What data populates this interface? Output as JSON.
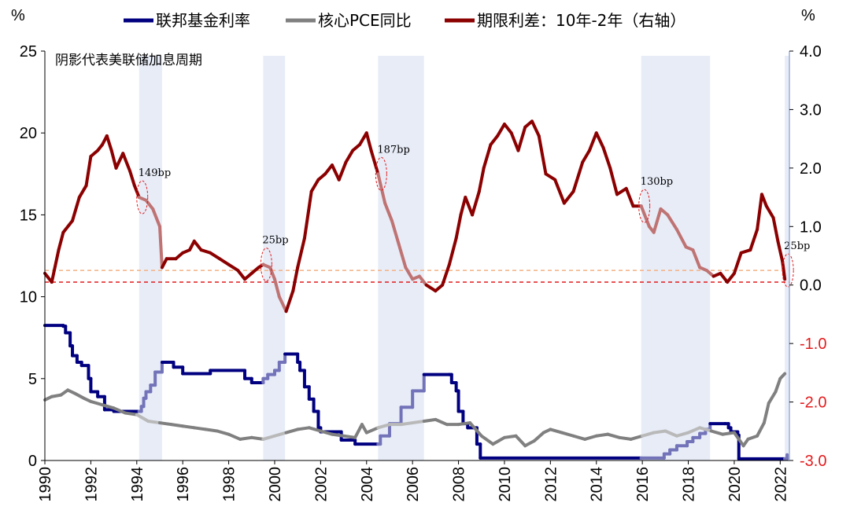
{
  "chart_data": {
    "type": "line",
    "legend": [
      "联邦基金利率",
      "核心PCE同比",
      "期限利差：10年-2年（右轴）"
    ],
    "note": "阴影代表美联储加息周期",
    "left_unit": "%",
    "right_unit": "%",
    "left_axis": {
      "range": [
        0,
        25
      ],
      "ticks": [
        "0",
        "5",
        "10",
        "15",
        "20",
        "25"
      ]
    },
    "right_axis": {
      "range": [
        -3.0,
        4.0
      ],
      "ticks": [
        "-3.0",
        "-2.0",
        "-1.0",
        "0.0",
        "1.0",
        "2.0",
        "3.0",
        "4.0"
      ]
    },
    "x_axis": {
      "range": [
        1990,
        2022.4
      ],
      "ticks": [
        "1990",
        "1992",
        "1994",
        "1996",
        "1998",
        "2000",
        "2002",
        "2004",
        "2006",
        "2008",
        "2010",
        "2012",
        "2014",
        "2016",
        "2018",
        "2020",
        "2022"
      ]
    },
    "shaded_periods": [
      [
        1994.1,
        1995.1
      ],
      [
        1999.5,
        2000.45
      ],
      [
        2004.5,
        2006.5
      ],
      [
        2015.95,
        2018.95
      ],
      [
        2022.2,
        2022.4
      ]
    ],
    "annotations": [
      {
        "label": "149bp",
        "x": 1994.1,
        "y": 1.5
      },
      {
        "label": "25bp",
        "x": 1999.5,
        "y": 0.35
      },
      {
        "label": "187bp",
        "x": 2004.5,
        "y": 1.9
      },
      {
        "label": "130bp",
        "x": 2015.95,
        "y": 1.35
      },
      {
        "label": "25bp",
        "x": 2022.2,
        "y": 0.25
      }
    ],
    "reference_lines": [
      {
        "axis": "right",
        "value": 0.25,
        "color": "#f4b183"
      },
      {
        "axis": "right",
        "value": 0.05,
        "color": "#e41a1c"
      }
    ],
    "series": [
      {
        "name": "联邦基金利率",
        "axis": "left",
        "color": "#000080",
        "shape": "step",
        "points": [
          [
            1990,
            8.25
          ],
          [
            1990.8,
            8.2
          ],
          [
            1990.9,
            7.8
          ],
          [
            1991.1,
            7.0
          ],
          [
            1991.2,
            6.4
          ],
          [
            1991.4,
            6.0
          ],
          [
            1991.6,
            5.8
          ],
          [
            1991.9,
            5.0
          ],
          [
            1992.0,
            4.2
          ],
          [
            1992.3,
            3.9
          ],
          [
            1992.6,
            3.1
          ],
          [
            1993.0,
            3.0
          ],
          [
            1994.1,
            3.0
          ],
          [
            1994.2,
            3.3
          ],
          [
            1994.3,
            3.8
          ],
          [
            1994.4,
            4.2
          ],
          [
            1994.6,
            4.6
          ],
          [
            1994.8,
            5.4
          ],
          [
            1995.1,
            6.0
          ],
          [
            1995.6,
            5.7
          ],
          [
            1996.0,
            5.3
          ],
          [
            1997.2,
            5.5
          ],
          [
            1998.7,
            5.0
          ],
          [
            1999.0,
            4.75
          ],
          [
            1999.5,
            5.0
          ],
          [
            1999.7,
            5.25
          ],
          [
            2000.0,
            5.5
          ],
          [
            2000.2,
            6.0
          ],
          [
            2000.45,
            6.5
          ],
          [
            2001.0,
            6.0
          ],
          [
            2001.1,
            5.5
          ],
          [
            2001.3,
            4.5
          ],
          [
            2001.5,
            3.75
          ],
          [
            2001.7,
            3.0
          ],
          [
            2001.9,
            2.0
          ],
          [
            2002.0,
            1.75
          ],
          [
            2002.9,
            1.25
          ],
          [
            2003.5,
            1.0
          ],
          [
            2004.5,
            1.0
          ],
          [
            2004.6,
            1.5
          ],
          [
            2005.0,
            2.25
          ],
          [
            2005.5,
            3.25
          ],
          [
            2006.0,
            4.25
          ],
          [
            2006.5,
            5.25
          ],
          [
            2007.6,
            5.25
          ],
          [
            2007.7,
            4.75
          ],
          [
            2007.9,
            4.25
          ],
          [
            2008.0,
            3.0
          ],
          [
            2008.2,
            2.25
          ],
          [
            2008.4,
            2.0
          ],
          [
            2008.8,
            1.0
          ],
          [
            2008.95,
            0.15
          ],
          [
            2015.95,
            0.15
          ],
          [
            2016.95,
            0.4
          ],
          [
            2017.2,
            0.65
          ],
          [
            2017.5,
            0.9
          ],
          [
            2017.95,
            1.15
          ],
          [
            2018.2,
            1.4
          ],
          [
            2018.5,
            1.65
          ],
          [
            2018.75,
            1.9
          ],
          [
            2018.95,
            2.25
          ],
          [
            2019.6,
            2.25
          ],
          [
            2019.75,
            2.0
          ],
          [
            2019.85,
            1.75
          ],
          [
            2020.15,
            1.55
          ],
          [
            2020.2,
            0.1
          ],
          [
            2022.2,
            0.1
          ],
          [
            2022.3,
            0.35
          ]
        ]
      },
      {
        "name": "核心PCE同比",
        "axis": "left",
        "color": "#808080",
        "points": [
          [
            1990,
            3.7
          ],
          [
            1990.3,
            3.9
          ],
          [
            1990.7,
            4.0
          ],
          [
            1991.0,
            4.3
          ],
          [
            1991.3,
            4.1
          ],
          [
            1991.7,
            3.8
          ],
          [
            1992.0,
            3.6
          ],
          [
            1992.5,
            3.4
          ],
          [
            1993.0,
            3.2
          ],
          [
            1993.5,
            2.9
          ],
          [
            1994.0,
            2.8
          ],
          [
            1994.5,
            2.4
          ],
          [
            1995.0,
            2.3
          ],
          [
            1995.5,
            2.2
          ],
          [
            1996.0,
            2.1
          ],
          [
            1996.5,
            2.0
          ],
          [
            1997.0,
            1.9
          ],
          [
            1997.5,
            1.8
          ],
          [
            1998.0,
            1.6
          ],
          [
            1998.5,
            1.3
          ],
          [
            1999.0,
            1.4
          ],
          [
            1999.5,
            1.3
          ],
          [
            2000.0,
            1.5
          ],
          [
            2000.5,
            1.7
          ],
          [
            2001.0,
            1.9
          ],
          [
            2001.5,
            2.0
          ],
          [
            2002.0,
            1.8
          ],
          [
            2002.5,
            1.6
          ],
          [
            2003.0,
            1.5
          ],
          [
            2003.5,
            1.4
          ],
          [
            2003.8,
            2.2
          ],
          [
            2004.0,
            1.7
          ],
          [
            2004.5,
            2.0
          ],
          [
            2005.0,
            2.2
          ],
          [
            2005.5,
            2.2
          ],
          [
            2006.0,
            2.3
          ],
          [
            2006.5,
            2.4
          ],
          [
            2007.0,
            2.5
          ],
          [
            2007.5,
            2.2
          ],
          [
            2008.0,
            2.2
          ],
          [
            2008.5,
            2.3
          ],
          [
            2009.0,
            1.5
          ],
          [
            2009.5,
            1.0
          ],
          [
            2010.0,
            1.4
          ],
          [
            2010.5,
            1.5
          ],
          [
            2010.9,
            0.9
          ],
          [
            2011.3,
            1.2
          ],
          [
            2011.7,
            1.7
          ],
          [
            2012.0,
            1.9
          ],
          [
            2012.5,
            1.7
          ],
          [
            2013.0,
            1.5
          ],
          [
            2013.5,
            1.3
          ],
          [
            2014.0,
            1.5
          ],
          [
            2014.5,
            1.6
          ],
          [
            2015.0,
            1.4
          ],
          [
            2015.5,
            1.3
          ],
          [
            2016.0,
            1.5
          ],
          [
            2016.5,
            1.7
          ],
          [
            2017.0,
            1.8
          ],
          [
            2017.5,
            1.5
          ],
          [
            2018.0,
            1.7
          ],
          [
            2018.5,
            2.0
          ],
          [
            2019.0,
            1.8
          ],
          [
            2019.5,
            1.6
          ],
          [
            2020.0,
            1.7
          ],
          [
            2020.4,
            0.9
          ],
          [
            2020.6,
            1.3
          ],
          [
            2021.0,
            1.5
          ],
          [
            2021.3,
            2.3
          ],
          [
            2021.5,
            3.5
          ],
          [
            2021.8,
            4.2
          ],
          [
            2022.0,
            5.0
          ],
          [
            2022.2,
            5.3
          ]
        ]
      },
      {
        "name": "期限利差：10年-2年（右轴）",
        "axis": "right",
        "color": "#8b0000",
        "points": [
          [
            1990,
            0.2
          ],
          [
            1990.3,
            0.05
          ],
          [
            1990.6,
            0.6
          ],
          [
            1990.8,
            0.9
          ],
          [
            1991.2,
            1.1
          ],
          [
            1991.5,
            1.5
          ],
          [
            1991.8,
            1.7
          ],
          [
            1992.0,
            2.2
          ],
          [
            1992.3,
            2.3
          ],
          [
            1992.5,
            2.4
          ],
          [
            1992.7,
            2.55
          ],
          [
            1992.9,
            2.3
          ],
          [
            1993.1,
            2.0
          ],
          [
            1993.4,
            2.25
          ],
          [
            1993.7,
            1.95
          ],
          [
            1993.9,
            1.7
          ],
          [
            1994.1,
            1.5
          ],
          [
            1994.4,
            1.45
          ],
          [
            1994.7,
            1.3
          ],
          [
            1995.0,
            1.0
          ],
          [
            1995.1,
            0.3
          ],
          [
            1995.3,
            0.45
          ],
          [
            1995.7,
            0.45
          ],
          [
            1996.0,
            0.55
          ],
          [
            1996.3,
            0.6
          ],
          [
            1996.5,
            0.75
          ],
          [
            1996.8,
            0.6
          ],
          [
            1997.2,
            0.55
          ],
          [
            1997.6,
            0.45
          ],
          [
            1998.0,
            0.35
          ],
          [
            1998.4,
            0.25
          ],
          [
            1998.7,
            0.1
          ],
          [
            1999.0,
            0.2
          ],
          [
            1999.3,
            0.3
          ],
          [
            1999.5,
            0.35
          ],
          [
            1999.8,
            0.3
          ],
          [
            2000.0,
            0.1
          ],
          [
            2000.2,
            -0.2
          ],
          [
            2000.5,
            -0.45
          ],
          [
            2000.8,
            -0.1
          ],
          [
            2001.0,
            0.3
          ],
          [
            2001.3,
            0.8
          ],
          [
            2001.6,
            1.6
          ],
          [
            2001.9,
            1.8
          ],
          [
            2002.2,
            1.9
          ],
          [
            2002.5,
            2.05
          ],
          [
            2002.8,
            1.8
          ],
          [
            2003.1,
            2.1
          ],
          [
            2003.4,
            2.3
          ],
          [
            2003.7,
            2.4
          ],
          [
            2004.0,
            2.6
          ],
          [
            2004.2,
            2.3
          ],
          [
            2004.5,
            1.9
          ],
          [
            2004.8,
            1.4
          ],
          [
            2005.1,
            1.1
          ],
          [
            2005.4,
            0.7
          ],
          [
            2005.7,
            0.3
          ],
          [
            2006.0,
            0.1
          ],
          [
            2006.3,
            0.15
          ],
          [
            2006.6,
            0.0
          ],
          [
            2007.0,
            -0.1
          ],
          [
            2007.3,
            0.0
          ],
          [
            2007.6,
            0.35
          ],
          [
            2007.9,
            0.8
          ],
          [
            2008.1,
            1.2
          ],
          [
            2008.3,
            1.5
          ],
          [
            2008.6,
            1.2
          ],
          [
            2008.9,
            1.6
          ],
          [
            2009.1,
            2.0
          ],
          [
            2009.4,
            2.4
          ],
          [
            2009.7,
            2.55
          ],
          [
            2010.0,
            2.75
          ],
          [
            2010.3,
            2.6
          ],
          [
            2010.6,
            2.3
          ],
          [
            2010.9,
            2.7
          ],
          [
            2011.2,
            2.8
          ],
          [
            2011.5,
            2.55
          ],
          [
            2011.8,
            1.9
          ],
          [
            2012.2,
            1.8
          ],
          [
            2012.6,
            1.4
          ],
          [
            2013.0,
            1.6
          ],
          [
            2013.4,
            2.1
          ],
          [
            2013.7,
            2.3
          ],
          [
            2014.0,
            2.6
          ],
          [
            2014.3,
            2.35
          ],
          [
            2014.6,
            2.0
          ],
          [
            2014.9,
            1.55
          ],
          [
            2015.3,
            1.65
          ],
          [
            2015.6,
            1.35
          ],
          [
            2015.95,
            1.35
          ],
          [
            2016.3,
            1.0
          ],
          [
            2016.5,
            0.9
          ],
          [
            2016.8,
            1.3
          ],
          [
            2017.1,
            1.2
          ],
          [
            2017.5,
            0.95
          ],
          [
            2017.9,
            0.65
          ],
          [
            2018.2,
            0.6
          ],
          [
            2018.5,
            0.3
          ],
          [
            2018.8,
            0.25
          ],
          [
            2019.1,
            0.15
          ],
          [
            2019.4,
            0.2
          ],
          [
            2019.7,
            0.05
          ],
          [
            2020.0,
            0.2
          ],
          [
            2020.3,
            0.55
          ],
          [
            2020.7,
            0.6
          ],
          [
            2021.0,
            0.95
          ],
          [
            2021.2,
            1.55
          ],
          [
            2021.4,
            1.35
          ],
          [
            2021.7,
            1.15
          ],
          [
            2021.9,
            0.75
          ],
          [
            2022.1,
            0.4
          ],
          [
            2022.2,
            0.1
          ]
        ]
      }
    ]
  }
}
